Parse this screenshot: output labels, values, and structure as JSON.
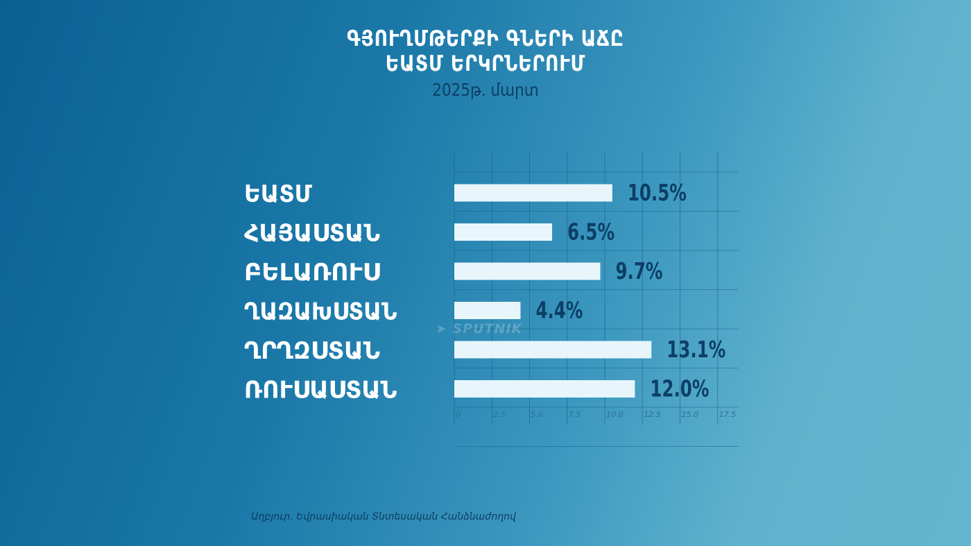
{
  "title_line1": "ԳՅՈՒՂՄԹԵՐՔԻ ԳՆԵՐԻ ԱՃԸ",
  "title_line2": "ԵԱՏՄ ԵՐԿՐՆԵՐՈՒՄ",
  "subtitle": "2025թ. մարտ",
  "watermark": "SPUTNIK",
  "source": "Աղբյուր․ Եվրասիական Տնտեսական Հանձնաժողով",
  "colors": {
    "bar": "#e8f6fc",
    "value_text": "#0c3f66",
    "grid": "#1b5f88",
    "label_text": "#ffffff"
  },
  "chart_data": {
    "type": "bar",
    "orientation": "horizontal",
    "categories": [
      "ԵԱՏՄ",
      "ՀԱՅԱՍՏԱՆ",
      "ԲԵԼԱՌՈՒՍ",
      "ՂԱԶԱԽՍՏԱՆ",
      "ՂՐՂԶՍՏԱՆ",
      "ՌՈՒՍԱՍՏԱՆ"
    ],
    "values": [
      10.5,
      6.5,
      9.7,
      4.4,
      13.1,
      12.0
    ],
    "value_labels": [
      "10.5%",
      "6.5%",
      "9.7%",
      "4.4%",
      "13.1%",
      "12.0%"
    ],
    "x_ticks": [
      "0",
      "2.5",
      "5.0",
      "7.5",
      "10.0",
      "12.5",
      "15.0",
      "17.5"
    ],
    "xlim": [
      0,
      17.5
    ],
    "grid": true
  }
}
